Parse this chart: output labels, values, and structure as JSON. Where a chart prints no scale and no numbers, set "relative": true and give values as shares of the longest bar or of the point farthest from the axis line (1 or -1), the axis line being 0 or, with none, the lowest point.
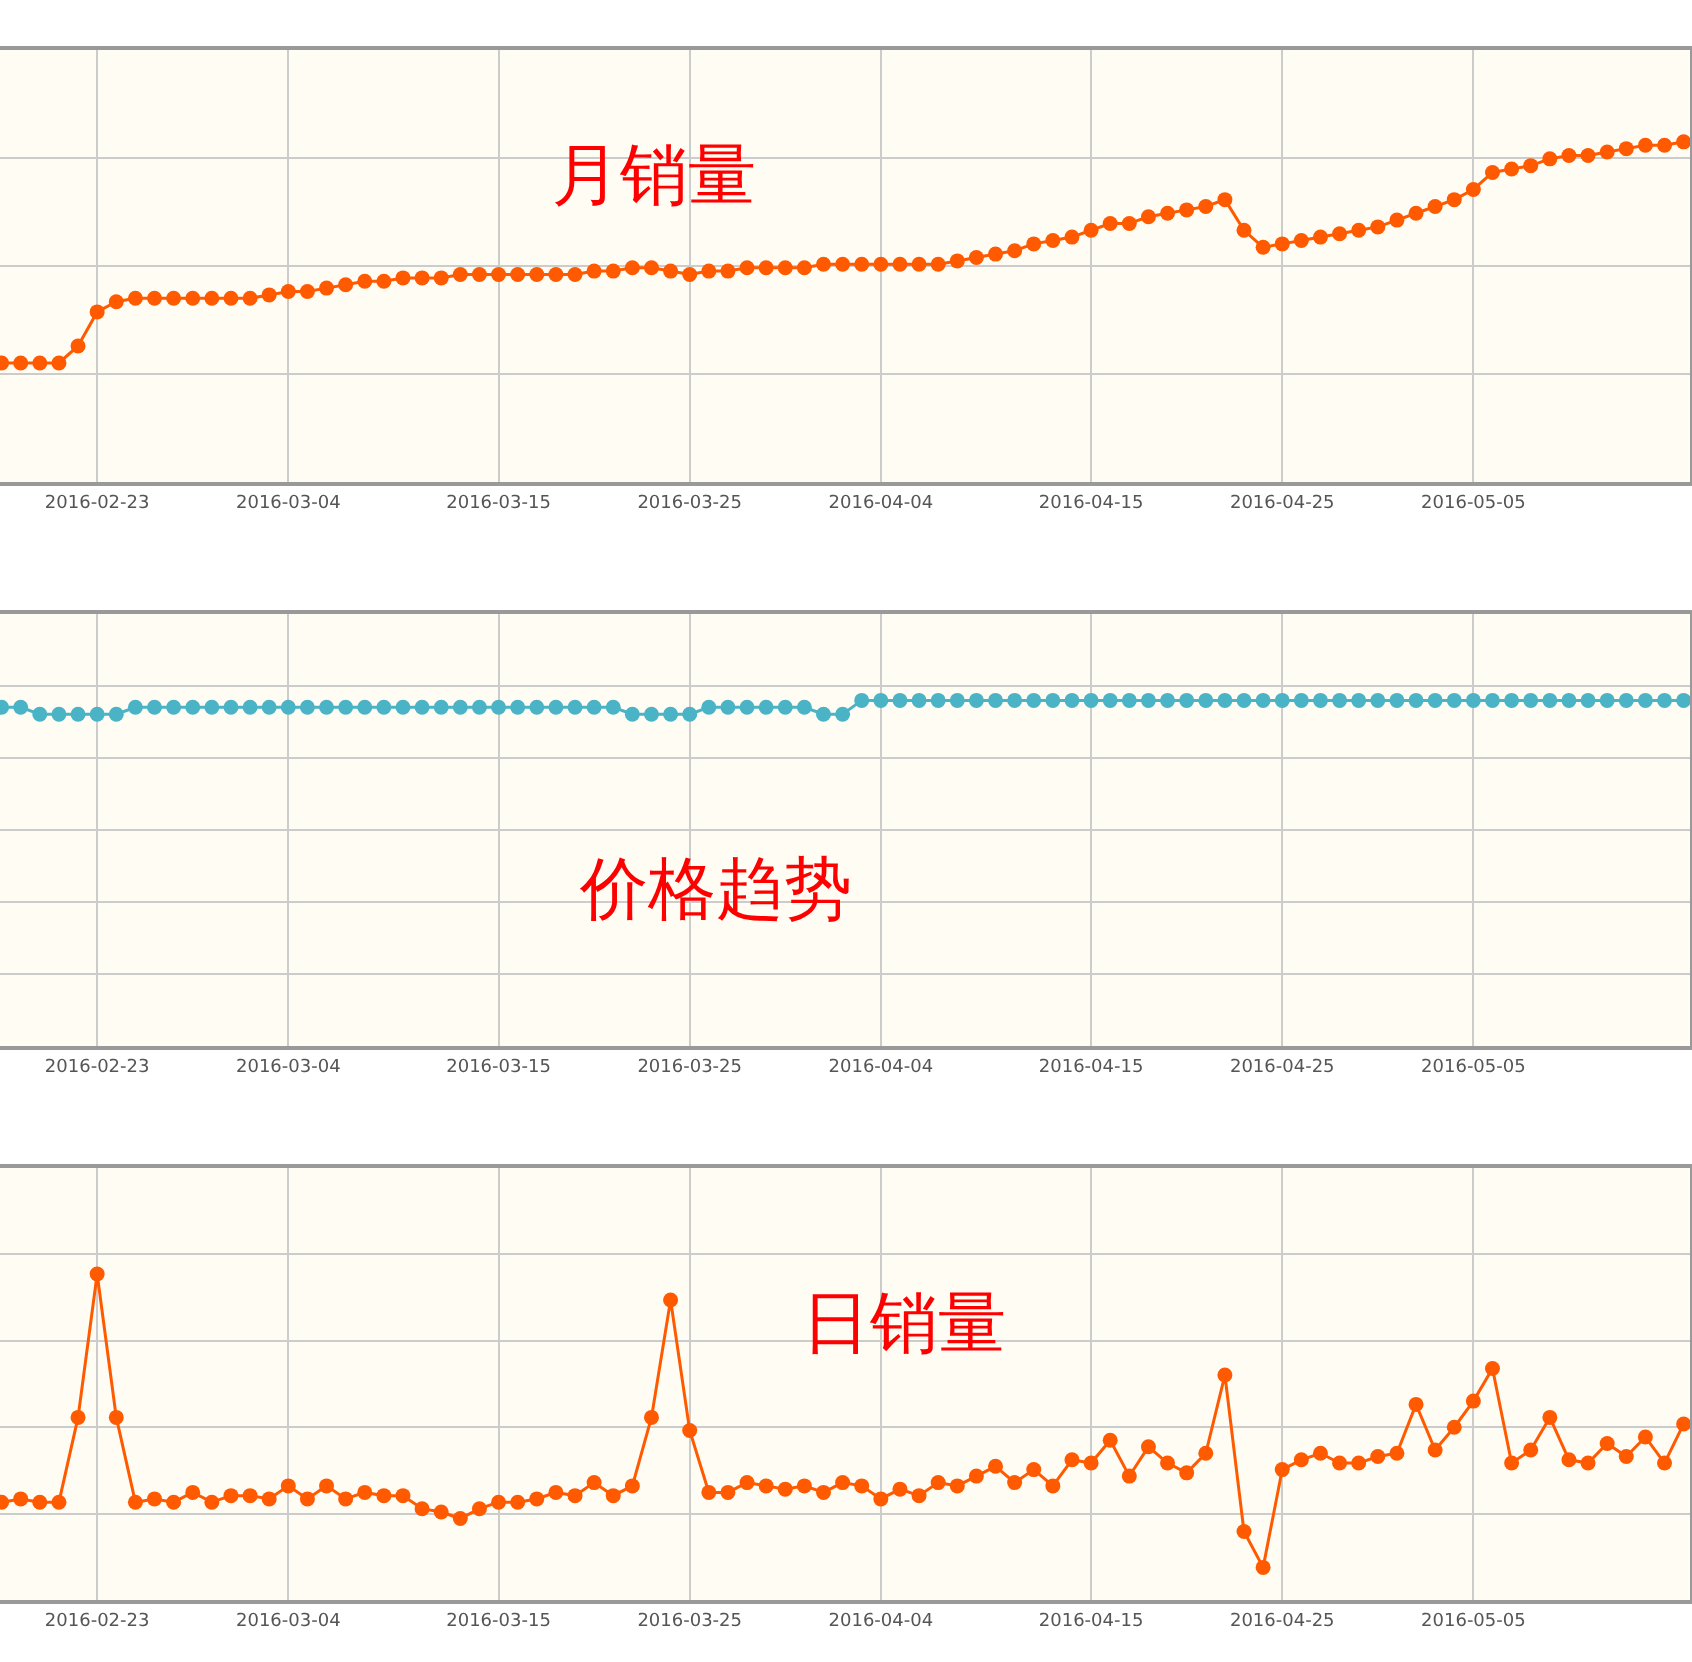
{
  "chart_data": [
    {
      "type": "line",
      "title": "月销量",
      "relative": true,
      "grid": true,
      "marker": "circle",
      "tick_labels": "x",
      "color": "#ff5a00",
      "xlim": [
        "2016-02-17T22:00",
        "2016-05-16T08:00"
      ],
      "xticks": [
        "2016-02-23",
        "2016-03-04",
        "2016-03-15",
        "2016-03-25",
        "2016-04-04",
        "2016-04-15",
        "2016-04-25",
        "2016-05-05"
      ],
      "x": [
        "2016-02-18",
        "2016-02-19",
        "2016-02-20",
        "2016-02-21",
        "2016-02-22",
        "2016-02-23",
        "2016-02-24",
        "2016-02-25",
        "2016-02-26",
        "2016-02-27",
        "2016-02-28",
        "2016-02-29",
        "2016-03-01",
        "2016-03-02",
        "2016-03-03",
        "2016-03-04",
        "2016-03-05",
        "2016-03-06",
        "2016-03-07",
        "2016-03-08",
        "2016-03-09",
        "2016-03-10",
        "2016-03-11",
        "2016-03-12",
        "2016-03-13",
        "2016-03-14",
        "2016-03-15",
        "2016-03-16",
        "2016-03-17",
        "2016-03-18",
        "2016-03-19",
        "2016-03-20",
        "2016-03-21",
        "2016-03-22",
        "2016-03-23",
        "2016-03-24",
        "2016-03-25",
        "2016-03-26",
        "2016-03-27",
        "2016-03-28",
        "2016-03-29",
        "2016-03-30",
        "2016-03-31",
        "2016-04-01",
        "2016-04-02",
        "2016-04-03",
        "2016-04-04",
        "2016-04-05",
        "2016-04-06",
        "2016-04-07",
        "2016-04-08",
        "2016-04-09",
        "2016-04-10",
        "2016-04-11",
        "2016-04-12",
        "2016-04-13",
        "2016-04-14",
        "2016-04-15",
        "2016-04-16",
        "2016-04-17",
        "2016-04-18",
        "2016-04-19",
        "2016-04-20",
        "2016-04-21",
        "2016-04-22",
        "2016-04-23",
        "2016-04-24",
        "2016-04-25",
        "2016-04-26",
        "2016-04-27",
        "2016-04-28",
        "2016-04-29",
        "2016-04-30",
        "2016-05-01",
        "2016-05-02",
        "2016-05-03",
        "2016-05-04",
        "2016-05-05",
        "2016-05-06",
        "2016-05-07",
        "2016-05-08",
        "2016-05-09",
        "2016-05-10",
        "2016-05-11",
        "2016-05-12",
        "2016-05-13",
        "2016-05-14",
        "2016-05-15",
        "2016-05-16"
      ],
      "values": [
        0.35,
        0.35,
        0.35,
        0.35,
        0.4,
        0.5,
        0.53,
        0.54,
        0.54,
        0.54,
        0.54,
        0.54,
        0.54,
        0.54,
        0.55,
        0.56,
        0.56,
        0.57,
        0.58,
        0.59,
        0.59,
        0.6,
        0.6,
        0.6,
        0.61,
        0.61,
        0.61,
        0.61,
        0.61,
        0.61,
        0.61,
        0.62,
        0.62,
        0.63,
        0.63,
        0.62,
        0.61,
        0.62,
        0.62,
        0.63,
        0.63,
        0.63,
        0.63,
        0.64,
        0.64,
        0.64,
        0.64,
        0.64,
        0.64,
        0.64,
        0.65,
        0.66,
        0.67,
        0.68,
        0.7,
        0.71,
        0.72,
        0.74,
        0.76,
        0.76,
        0.78,
        0.79,
        0.8,
        0.81,
        0.83,
        0.74,
        0.69,
        0.7,
        0.71,
        0.72,
        0.73,
        0.74,
        0.75,
        0.77,
        0.79,
        0.81,
        0.83,
        0.86,
        0.91,
        0.92,
        0.93,
        0.95,
        0.96,
        0.96,
        0.97,
        0.98,
        0.99,
        0.99,
        1
      ]
    },
    {
      "type": "line",
      "title": "价格趋势",
      "relative": true,
      "grid": true,
      "marker": "circle",
      "tick_labels": "x",
      "color": "#4bb3c6",
      "xlim": [
        "2016-02-17T22:00",
        "2016-05-16T08:00"
      ],
      "xticks": [
        "2016-02-23",
        "2016-03-04",
        "2016-03-15",
        "2016-03-25",
        "2016-04-04",
        "2016-04-15",
        "2016-04-25",
        "2016-05-05"
      ],
      "x": [
        "2016-02-18",
        "2016-02-19",
        "2016-02-20",
        "2016-02-21",
        "2016-02-22",
        "2016-02-23",
        "2016-02-24",
        "2016-02-25",
        "2016-02-26",
        "2016-02-27",
        "2016-02-28",
        "2016-02-29",
        "2016-03-01",
        "2016-03-02",
        "2016-03-03",
        "2016-03-04",
        "2016-03-05",
        "2016-03-06",
        "2016-03-07",
        "2016-03-08",
        "2016-03-09",
        "2016-03-10",
        "2016-03-11",
        "2016-03-12",
        "2016-03-13",
        "2016-03-14",
        "2016-03-15",
        "2016-03-16",
        "2016-03-17",
        "2016-03-18",
        "2016-03-19",
        "2016-03-20",
        "2016-03-21",
        "2016-03-22",
        "2016-03-23",
        "2016-03-24",
        "2016-03-25",
        "2016-03-26",
        "2016-03-27",
        "2016-03-28",
        "2016-03-29",
        "2016-03-30",
        "2016-03-31",
        "2016-04-01",
        "2016-04-02",
        "2016-04-03",
        "2016-04-04",
        "2016-04-05",
        "2016-04-06",
        "2016-04-07",
        "2016-04-08",
        "2016-04-09",
        "2016-04-10",
        "2016-04-11",
        "2016-04-12",
        "2016-04-13",
        "2016-04-14",
        "2016-04-15",
        "2016-04-16",
        "2016-04-17",
        "2016-04-18",
        "2016-04-19",
        "2016-04-20",
        "2016-04-21",
        "2016-04-22",
        "2016-04-23",
        "2016-04-24",
        "2016-04-25",
        "2016-04-26",
        "2016-04-27",
        "2016-04-28",
        "2016-04-29",
        "2016-04-30",
        "2016-05-01",
        "2016-05-02",
        "2016-05-03",
        "2016-05-04",
        "2016-05-05",
        "2016-05-06",
        "2016-05-07",
        "2016-05-08",
        "2016-05-09",
        "2016-05-10",
        "2016-05-11",
        "2016-05-12",
        "2016-05-13",
        "2016-05-14",
        "2016-05-15",
        "2016-05-16"
      ],
      "values": [
        0.98,
        0.98,
        0.96,
        0.96,
        0.96,
        0.96,
        0.96,
        0.98,
        0.98,
        0.98,
        0.98,
        0.98,
        0.98,
        0.98,
        0.98,
        0.98,
        0.98,
        0.98,
        0.98,
        0.98,
        0.98,
        0.98,
        0.98,
        0.98,
        0.98,
        0.98,
        0.98,
        0.98,
        0.98,
        0.98,
        0.98,
        0.98,
        0.98,
        0.96,
        0.96,
        0.96,
        0.96,
        0.98,
        0.98,
        0.98,
        0.98,
        0.98,
        0.98,
        0.96,
        0.96,
        1,
        1,
        1,
        1,
        1,
        1,
        1,
        1,
        1,
        1,
        1,
        1,
        1,
        1,
        1,
        1,
        1,
        1,
        1,
        1,
        1,
        1,
        1,
        1,
        1,
        1,
        1,
        1,
        1,
        1,
        1,
        1,
        1,
        1,
        1,
        1,
        1,
        1,
        1,
        1,
        1,
        1,
        1,
        1
      ]
    },
    {
      "type": "line",
      "title": "日销量",
      "relative": true,
      "grid": true,
      "marker": "circle",
      "tick_labels": "x",
      "color": "#ff5a00",
      "xlim": [
        "2016-02-17T22:00",
        "2016-05-16T08:00"
      ],
      "xticks": [
        "2016-02-23",
        "2016-03-04",
        "2016-03-15",
        "2016-03-25",
        "2016-04-04",
        "2016-04-15",
        "2016-04-25",
        "2016-05-05"
      ],
      "x": [
        "2016-02-18",
        "2016-02-19",
        "2016-02-20",
        "2016-02-21",
        "2016-02-22",
        "2016-02-23",
        "2016-02-24",
        "2016-02-25",
        "2016-02-26",
        "2016-02-27",
        "2016-02-28",
        "2016-02-29",
        "2016-03-01",
        "2016-03-02",
        "2016-03-03",
        "2016-03-04",
        "2016-03-05",
        "2016-03-06",
        "2016-03-07",
        "2016-03-08",
        "2016-03-09",
        "2016-03-10",
        "2016-03-11",
        "2016-03-12",
        "2016-03-13",
        "2016-03-14",
        "2016-03-15",
        "2016-03-16",
        "2016-03-17",
        "2016-03-18",
        "2016-03-19",
        "2016-03-20",
        "2016-03-21",
        "2016-03-22",
        "2016-03-23",
        "2016-03-24",
        "2016-03-25",
        "2016-03-26",
        "2016-03-27",
        "2016-03-28",
        "2016-03-29",
        "2016-03-30",
        "2016-03-31",
        "2016-04-01",
        "2016-04-02",
        "2016-04-03",
        "2016-04-04",
        "2016-04-05",
        "2016-04-06",
        "2016-04-07",
        "2016-04-08",
        "2016-04-09",
        "2016-04-10",
        "2016-04-11",
        "2016-04-12",
        "2016-04-13",
        "2016-04-14",
        "2016-04-15",
        "2016-04-16",
        "2016-04-17",
        "2016-04-18",
        "2016-04-19",
        "2016-04-20",
        "2016-04-21",
        "2016-04-22",
        "2016-04-23",
        "2016-04-24",
        "2016-04-25",
        "2016-04-26",
        "2016-04-27",
        "2016-04-28",
        "2016-04-29",
        "2016-04-30",
        "2016-05-01",
        "2016-05-02",
        "2016-05-03",
        "2016-05-04",
        "2016-05-05",
        "2016-05-06",
        "2016-05-07",
        "2016-05-08",
        "2016-05-09",
        "2016-05-10",
        "2016-05-11",
        "2016-05-12",
        "2016-05-13",
        "2016-05-14",
        "2016-05-15",
        "2016-05-16"
      ],
      "values": [
        0.3,
        0.31,
        0.3,
        0.3,
        0.56,
        1,
        0.56,
        0.3,
        0.31,
        0.3,
        0.33,
        0.3,
        0.32,
        0.32,
        0.31,
        0.35,
        0.31,
        0.35,
        0.31,
        0.33,
        0.32,
        0.32,
        0.28,
        0.27,
        0.25,
        0.28,
        0.3,
        0.3,
        0.31,
        0.33,
        0.32,
        0.36,
        0.32,
        0.35,
        0.56,
        0.92,
        0.52,
        0.33,
        0.33,
        0.36,
        0.35,
        0.34,
        0.35,
        0.33,
        0.36,
        0.35,
        0.31,
        0.34,
        0.32,
        0.36,
        0.35,
        0.38,
        0.41,
        0.36,
        0.4,
        0.35,
        0.43,
        0.42,
        0.49,
        0.38,
        0.47,
        0.42,
        0.39,
        0.45,
        0.69,
        0.21,
        0.1,
        0.4,
        0.43,
        0.45,
        0.42,
        0.42,
        0.44,
        0.45,
        0.6,
        0.46,
        0.53,
        0.61,
        0.71,
        0.42,
        0.46,
        0.56,
        0.43,
        0.42,
        0.48,
        0.44,
        0.5,
        0.42,
        0.54
      ]
    }
  ]
}
